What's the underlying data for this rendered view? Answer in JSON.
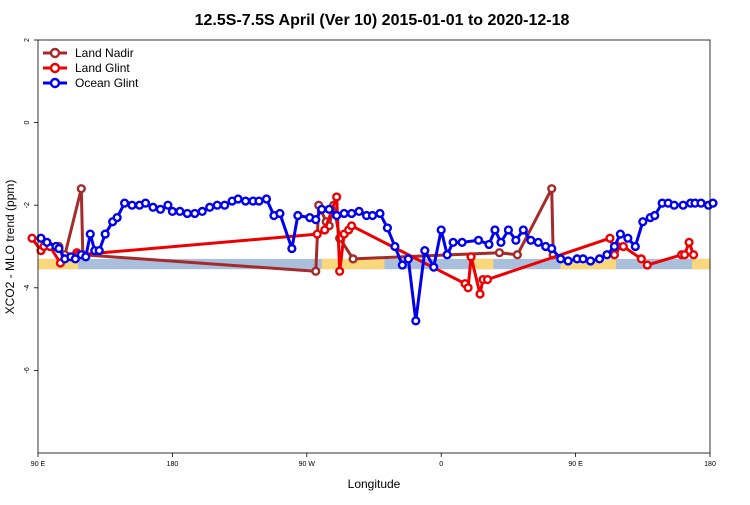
{
  "chart_data": {
    "type": "line",
    "title": "12.5S-7.5S April (Ver 10)   2015-01-01 to 2020-12-18",
    "xlabel": "Longitude",
    "ylabel": "XCO2 - MLO trend (ppm)",
    "xlim": [
      90,
      540
    ],
    "ylim": [
      -8,
      2
    ],
    "x_ticks": [
      {
        "value": 90,
        "label": "90 E"
      },
      {
        "value": 180,
        "label": "180"
      },
      {
        "value": 270,
        "label": "90 W"
      },
      {
        "value": 360,
        "label": "0"
      },
      {
        "value": 450,
        "label": "90 E"
      },
      {
        "value": 540,
        "label": "180"
      }
    ],
    "y_ticks": [
      {
        "value": 2,
        "label": "2"
      },
      {
        "value": 0,
        "label": "0"
      },
      {
        "value": -2,
        "label": "-2"
      },
      {
        "value": -4,
        "label": "-4"
      },
      {
        "value": -6,
        "label": "-6"
      }
    ],
    "legend_position": "top-left",
    "background_band": {
      "y_range": [
        -3.55,
        -3.3
      ],
      "color": "#a9bfdb",
      "land_color": "#f9d77a",
      "land_segments": [
        [
          86,
          117
        ],
        [
          280,
          322
        ],
        [
          380,
          395
        ],
        [
          440,
          477
        ],
        [
          528,
          542
        ]
      ]
    },
    "series": [
      {
        "name": "Land Nadir",
        "color": "#a52a2a",
        "x": [
          104,
          108,
          119,
          120,
          276,
          278,
          283,
          285,
          288,
          292,
          301,
          399,
          411,
          434,
          435
        ],
        "y": [
          -3.0,
          -3.2,
          -1.6,
          -3.2,
          -3.6,
          -2.0,
          -2.4,
          -2.5,
          -2.0,
          -2.8,
          -3.3,
          -3.15,
          -3.2,
          -1.6,
          -3.2
        ]
      },
      {
        "name": "Land Glint",
        "color": "#ee0000",
        "x": [
          86,
          92,
          94,
          98,
          105,
          116,
          117,
          277,
          282,
          290,
          292,
          295,
          298,
          300,
          376,
          378,
          380,
          386,
          388,
          391,
          473,
          476,
          476,
          478,
          482,
          494,
          498,
          521,
          523,
          526,
          529
        ],
        "y": [
          -2.8,
          -3.1,
          -3.0,
          -3.0,
          -3.4,
          -3.15,
          -3.2,
          -2.7,
          -2.6,
          -1.8,
          -3.6,
          -2.7,
          -2.6,
          -2.5,
          -3.9,
          -4.0,
          -3.25,
          -4.15,
          -3.8,
          -3.8,
          -2.8,
          -3.1,
          -3.2,
          -3.0,
          -3.0,
          -3.3,
          -3.45,
          -3.2,
          -3.2,
          -2.9,
          -3.2
        ],
        "x2": [],
        "y2": []
      },
      {
        "name": "Ocean Glint",
        "color": "#0000ee",
        "x": [
          92,
          96,
          102,
          104,
          108,
          112,
          115,
          119,
          122,
          125,
          128,
          131,
          135,
          140,
          143,
          148,
          153,
          158,
          162,
          167,
          172,
          177,
          180,
          185,
          190,
          195,
          200,
          205,
          210,
          215,
          220,
          224,
          229,
          234,
          238,
          243,
          248,
          252,
          260,
          264,
          272,
          276,
          280,
          285,
          290,
          295,
          300,
          305,
          310,
          314,
          319,
          324,
          329,
          334,
          338,
          343,
          349,
          355,
          360,
          364,
          368,
          374,
          385,
          392,
          396,
          400,
          405,
          410,
          415,
          420,
          425,
          430,
          434,
          440,
          445,
          451,
          455,
          460,
          466,
          471,
          476,
          480,
          485,
          490,
          495,
          500,
          503,
          508,
          512,
          516,
          522,
          527,
          530,
          534,
          539,
          542
        ],
        "y": [
          -2.8,
          -2.9,
          -3.0,
          -3.05,
          -3.3,
          -3.25,
          -3.3,
          -3.2,
          -3.25,
          -2.7,
          -3.1,
          -3.1,
          -2.7,
          -2.4,
          -2.3,
          -1.95,
          -2.0,
          -2.0,
          -1.95,
          -2.05,
          -2.1,
          -2.0,
          -2.15,
          -2.15,
          -2.2,
          -2.2,
          -2.15,
          -2.05,
          -2.0,
          -2.0,
          -1.9,
          -1.85,
          -1.9,
          -1.9,
          -1.9,
          -1.85,
          -2.25,
          -2.2,
          -3.05,
          -2.25,
          -2.3,
          -2.35,
          -2.1,
          -2.1,
          -2.25,
          -2.2,
          -2.2,
          -2.15,
          -2.25,
          -2.25,
          -2.2,
          -2.55,
          -3.0,
          -3.45,
          -3.3,
          -4.8,
          -3.1,
          -3.5,
          -2.6,
          -3.2,
          -2.9,
          -2.9,
          -2.85,
          -2.95,
          -2.6,
          -2.9,
          -2.6,
          -2.85,
          -2.6,
          -2.85,
          -2.9,
          -3.0,
          -3.05,
          -3.3,
          -3.35,
          -3.3,
          -3.3,
          -3.35,
          -3.3,
          -3.2,
          -3.0,
          -2.7,
          -2.8,
          -3.0,
          -2.4,
          -2.3,
          -2.25,
          -1.95,
          -1.95,
          -2.0,
          -2.0,
          -1.95,
          -1.95,
          -1.95,
          -2.0,
          -1.95
        ]
      }
    ]
  }
}
